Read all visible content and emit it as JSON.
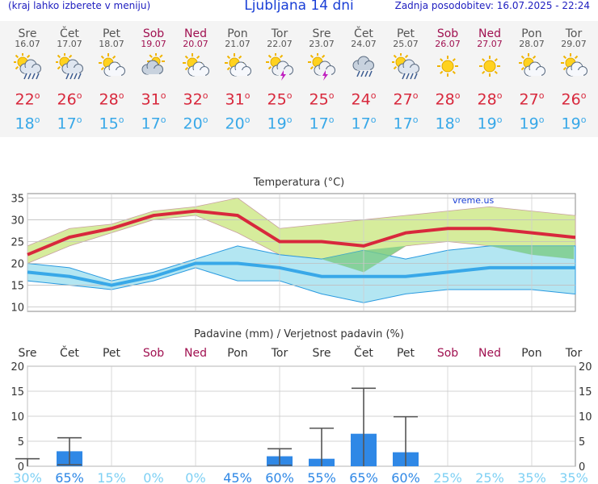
{
  "header": {
    "menu_note": "(kraj lahko izberete v meniju)",
    "title": "Ljubljana 14 dni",
    "updated": "Zadnja posodobitev: 16.07.2025 - 22:24"
  },
  "colors": {
    "max_line": "#d8283c",
    "min_line": "#38a8e8",
    "max_band": "#d6ec9c",
    "min_band": "#a6e2f0",
    "overlap_band": "#7ccc88",
    "weekend": "#a01050",
    "precip_bar": "#2f88e6",
    "prob_high": "#2f88e6",
    "prob_low": "#7ed0f4"
  },
  "days": [
    {
      "name": "Sre",
      "date": "16.07",
      "weekend": false,
      "icon": "sun-cloud-rain-icon",
      "max": "22",
      "min": "18"
    },
    {
      "name": "Čet",
      "date": "17.07",
      "weekend": false,
      "icon": "sun-cloud-rain-icon",
      "max": "26",
      "min": "17"
    },
    {
      "name": "Pet",
      "date": "18.07",
      "weekend": false,
      "icon": "sun-cloud-icon",
      "max": "28",
      "min": "15"
    },
    {
      "name": "Sob",
      "date": "19.07",
      "weekend": true,
      "icon": "cloud-sun-icon",
      "max": "31",
      "min": "17"
    },
    {
      "name": "Ned",
      "date": "20.07",
      "weekend": true,
      "icon": "sun-cloud-icon",
      "max": "32",
      "min": "20"
    },
    {
      "name": "Pon",
      "date": "21.07",
      "weekend": false,
      "icon": "sun-cloud-icon",
      "max": "31",
      "min": "20"
    },
    {
      "name": "Tor",
      "date": "22.07",
      "weekend": false,
      "icon": "sun-cloud-thunder-icon",
      "max": "25",
      "min": "19"
    },
    {
      "name": "Sre",
      "date": "23.07",
      "weekend": false,
      "icon": "sun-cloud-thunder-icon",
      "max": "25",
      "min": "17"
    },
    {
      "name": "Čet",
      "date": "24.07",
      "weekend": false,
      "icon": "cloud-rain-icon",
      "max": "24",
      "min": "17"
    },
    {
      "name": "Pet",
      "date": "25.07",
      "weekend": false,
      "icon": "sun-cloud-rain-icon",
      "max": "27",
      "min": "17"
    },
    {
      "name": "Sob",
      "date": "26.07",
      "weekend": true,
      "icon": "sun-icon",
      "max": "28",
      "min": "18"
    },
    {
      "name": "Ned",
      "date": "27.07",
      "weekend": true,
      "icon": "sun-icon",
      "max": "28",
      "min": "19"
    },
    {
      "name": "Pon",
      "date": "28.07",
      "weekend": false,
      "icon": "sun-cloud-icon",
      "max": "27",
      "min": "19"
    },
    {
      "name": "Tor",
      "date": "29.07",
      "weekend": false,
      "icon": "sun-cloud-icon",
      "max": "26",
      "min": "19"
    }
  ],
  "temp_chart_title": "Temperatura (°C)",
  "precip_chart_title": "Padavine (mm) / Verjetnost padavin (%)",
  "watermark": "vreme.us",
  "chart_data": [
    {
      "type": "line",
      "title": "Temperatura (°C)",
      "ylim": [
        9,
        36
      ],
      "yticks": [
        "35",
        "30",
        "25",
        "20",
        "15",
        "10"
      ],
      "x": [
        0,
        1,
        2,
        3,
        4,
        5,
        6,
        7,
        8,
        9,
        10,
        11,
        12,
        13
      ],
      "series": [
        {
          "name": "max",
          "values": [
            22,
            26,
            28,
            31,
            32,
            31,
            25,
            25,
            24,
            27,
            28,
            28,
            27,
            26
          ]
        },
        {
          "name": "min",
          "values": [
            18,
            17,
            15,
            17,
            20,
            20,
            19,
            17,
            17,
            17,
            18,
            19,
            19,
            19
          ]
        },
        {
          "name": "max_upper",
          "values": [
            24,
            28,
            29,
            32,
            33,
            35,
            28,
            29,
            30,
            31,
            32,
            33,
            32,
            31
          ]
        },
        {
          "name": "max_lower",
          "values": [
            20,
            24,
            27,
            30,
            31,
            27,
            22,
            21,
            18,
            24,
            25,
            24,
            22,
            21
          ]
        },
        {
          "name": "min_upper",
          "values": [
            20,
            19,
            16,
            18,
            21,
            24,
            22,
            21,
            23,
            21,
            23,
            24,
            24,
            24
          ]
        },
        {
          "name": "min_lower",
          "values": [
            16,
            15,
            14,
            16,
            19,
            16,
            16,
            13,
            11,
            13,
            14,
            14,
            14,
            13
          ]
        }
      ]
    },
    {
      "type": "bar",
      "title": "Padavine (mm) / Verjetnost padavin (%)",
      "ylim": [
        0,
        20
      ],
      "yticks": [
        "20",
        "15",
        "10",
        "5",
        "0"
      ],
      "categories": [
        "Sre",
        "Čet",
        "Pet",
        "Sob",
        "Ned",
        "Pon",
        "Tor",
        "Sre",
        "Čet",
        "Pet",
        "Sob",
        "Ned",
        "Pon",
        "Tor"
      ],
      "values": [
        0,
        3,
        0,
        0,
        0,
        0,
        2,
        1.5,
        6.5,
        2.8,
        0,
        0,
        0,
        0
      ],
      "range_upper": [
        1.5,
        5.7,
        null,
        null,
        null,
        null,
        3.5,
        7.6,
        15.6,
        9.9,
        null,
        null,
        null,
        null
      ],
      "range_lower": [
        0,
        0.3,
        null,
        null,
        null,
        null,
        0.2,
        0,
        0,
        0,
        null,
        null,
        null,
        null
      ],
      "probability": [
        "30%",
        "65%",
        "15%",
        "0%",
        "0%",
        "45%",
        "60%",
        "55%",
        "65%",
        "60%",
        "25%",
        "25%",
        "35%",
        "35%"
      ]
    }
  ]
}
